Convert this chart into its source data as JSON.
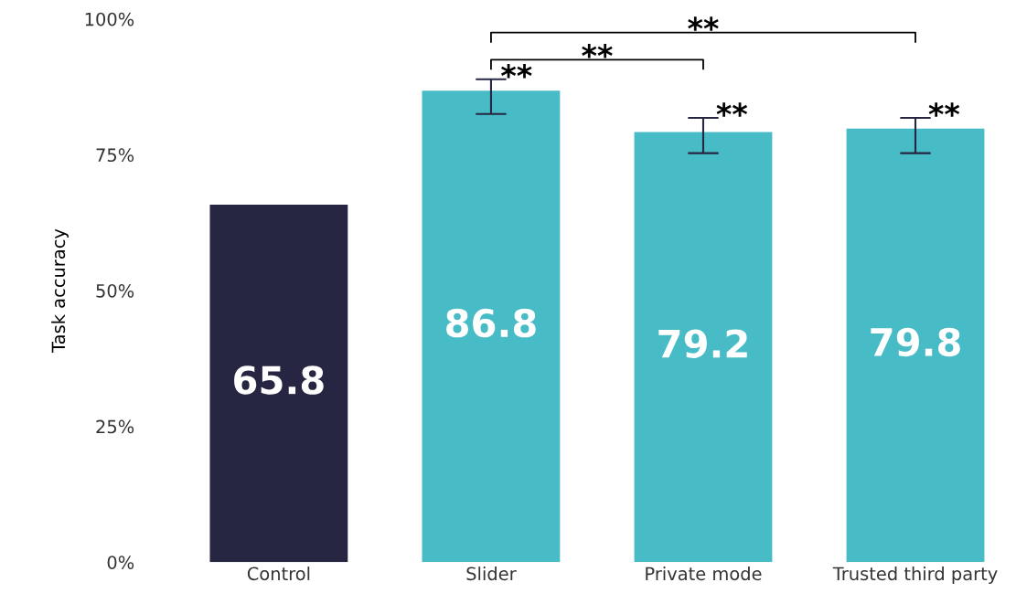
{
  "chart_data": {
    "type": "bar",
    "ylabel": "Task accuracy",
    "categories": [
      "Control",
      "Slider",
      "Private mode",
      "Trusted third party"
    ],
    "values": [
      65.8,
      86.8,
      79.2,
      79.8
    ],
    "colors": [
      "#262643",
      "#48bcc6",
      "#48bcc6",
      "#48bcc6"
    ],
    "errors": [
      null,
      [
        82.5,
        88.9
      ],
      [
        75.3,
        81.8
      ],
      [
        75.3,
        81.8
      ]
    ],
    "data_labels": true,
    "ylim": [
      0,
      100
    ],
    "yticks": [
      {
        "value": 0,
        "label": "0%"
      },
      {
        "value": 25,
        "label": "25%"
      },
      {
        "value": 50,
        "label": "50%"
      },
      {
        "value": 75,
        "label": "75%"
      },
      {
        "value": 100,
        "label": "100%"
      }
    ],
    "grid": false,
    "legend": false,
    "annotations": [
      {
        "text": "**",
        "x": "Slider",
        "y": 88.9
      },
      {
        "text": "**",
        "x": "Private mode",
        "y": 81.8
      },
      {
        "text": "**",
        "x": "Trusted third party",
        "y": 81.8
      },
      "**",
      "**"
    ]
  }
}
